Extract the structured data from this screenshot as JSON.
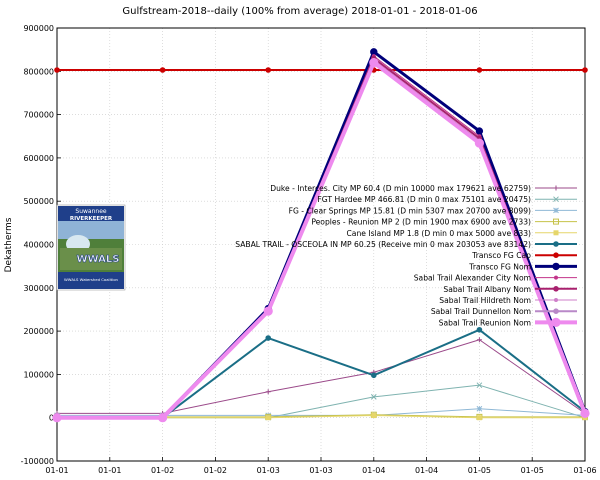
{
  "chart_data": {
    "type": "line",
    "title": "Gulfstream-2018--daily (100% from average) 2018-01-01 - 2018-01-06",
    "ylabel": "Dekatherms",
    "xlabel": "",
    "x_tick_labels": [
      "01-01",
      "01-01",
      "01-02",
      "01-02",
      "01-03",
      "01-03",
      "01-04",
      "01-04",
      "01-05",
      "01-05",
      "01-06"
    ],
    "x": [
      0,
      1,
      2,
      3,
      4,
      5
    ],
    "y_ticks": [
      -100000,
      0,
      100000,
      200000,
      300000,
      400000,
      500000,
      600000,
      700000,
      800000,
      900000
    ],
    "y_tick_labels": [
      "-100000",
      "0",
      "100000",
      "200000",
      "300000",
      "400000",
      "500000",
      "600000",
      "700000",
      "800000",
      "900000"
    ],
    "ylim": [
      -100000,
      900000
    ],
    "grid": true,
    "legend_position": "right",
    "series": [
      {
        "name": "Duke - Interces. City MP 60.4 (D min 10000 max 179621 ave 62759)",
        "color": "#9b4a8a",
        "width": 1,
        "marker": "plus",
        "values": [
          10000,
          10000,
          60000,
          105000,
          180000,
          10000
        ]
      },
      {
        "name": "FGT Hardee MP 466.81 (D min 0 max 75101 ave 20475)",
        "color": "#7fb3b0",
        "width": 1,
        "marker": "cross",
        "values": [
          0,
          0,
          0,
          48000,
          75101,
          0
        ]
      },
      {
        "name": "FG - Clear Springs MP 15.81 (D min 5307 max 20700 ave 8099)",
        "color": "#8fb8d6",
        "width": 1,
        "marker": "star",
        "values": [
          5307,
          5307,
          5307,
          5307,
          20700,
          5307
        ]
      },
      {
        "name": "Peoples - Reunion MP 2 (D min 1900 max 6900 ave 2733)",
        "color": "#c6c24a",
        "width": 1,
        "marker": "square",
        "values": [
          1900,
          1900,
          1900,
          6900,
          1900,
          1900
        ]
      },
      {
        "name": "Cane Island MP 1.8 (D min 0 max 5000 ave 833)",
        "color": "#e6d66a",
        "width": 1,
        "marker": "square-filled",
        "values": [
          0,
          0,
          0,
          5000,
          0,
          0
        ]
      },
      {
        "name": "SABAL TRAIL - OSCEOLA IN MP 60.25 (Receive min 0 max 203053 ave 83142)",
        "color": "#1a6e86",
        "width": 2,
        "marker": "circle",
        "values": [
          0,
          0,
          184000,
          98000,
          203053,
          14000
        ]
      },
      {
        "name": "Transco FG Cap",
        "color": "#cc0000",
        "width": 2,
        "marker": "circle",
        "values": [
          803000,
          803000,
          803000,
          803000,
          803000,
          803000
        ]
      },
      {
        "name": "Transco FG Nom",
        "color": "#00007a",
        "width": 3,
        "marker": "circle",
        "values": [
          0,
          0,
          252000,
          845000,
          662000,
          14000
        ]
      },
      {
        "name": "Sabal Trail Alexander City Nom",
        "color": "#c2338a",
        "width": 1,
        "marker": "circle",
        "values": [
          0,
          0,
          250000,
          835000,
          650000,
          12000
        ]
      },
      {
        "name": "Sabal Trail Albany Nom",
        "color": "#a8206e",
        "width": 2,
        "marker": "circle",
        "values": [
          0,
          0,
          249000,
          830000,
          645000,
          12000
        ]
      },
      {
        "name": "Sabal Trail Hildreth Nom",
        "color": "#cf7fc9",
        "width": 1,
        "marker": "circle",
        "values": [
          0,
          0,
          248000,
          826000,
          640000,
          11000
        ]
      },
      {
        "name": "Sabal Trail Dunnellon Nom",
        "color": "#b989c8",
        "width": 2,
        "marker": "circle",
        "values": [
          0,
          0,
          247000,
          822000,
          636000,
          11000
        ]
      },
      {
        "name": "Sabal Trail Reunion Nom",
        "color": "#ee8aee",
        "width": 4,
        "marker": "circle",
        "values": [
          0,
          0,
          246000,
          820000,
          634000,
          10000
        ]
      }
    ]
  },
  "logo": {
    "line1": "Suwannee",
    "line2": "RIVERKEEPER",
    "line3": "WWALS",
    "line4": "WWALS Watershed Coalition"
  }
}
